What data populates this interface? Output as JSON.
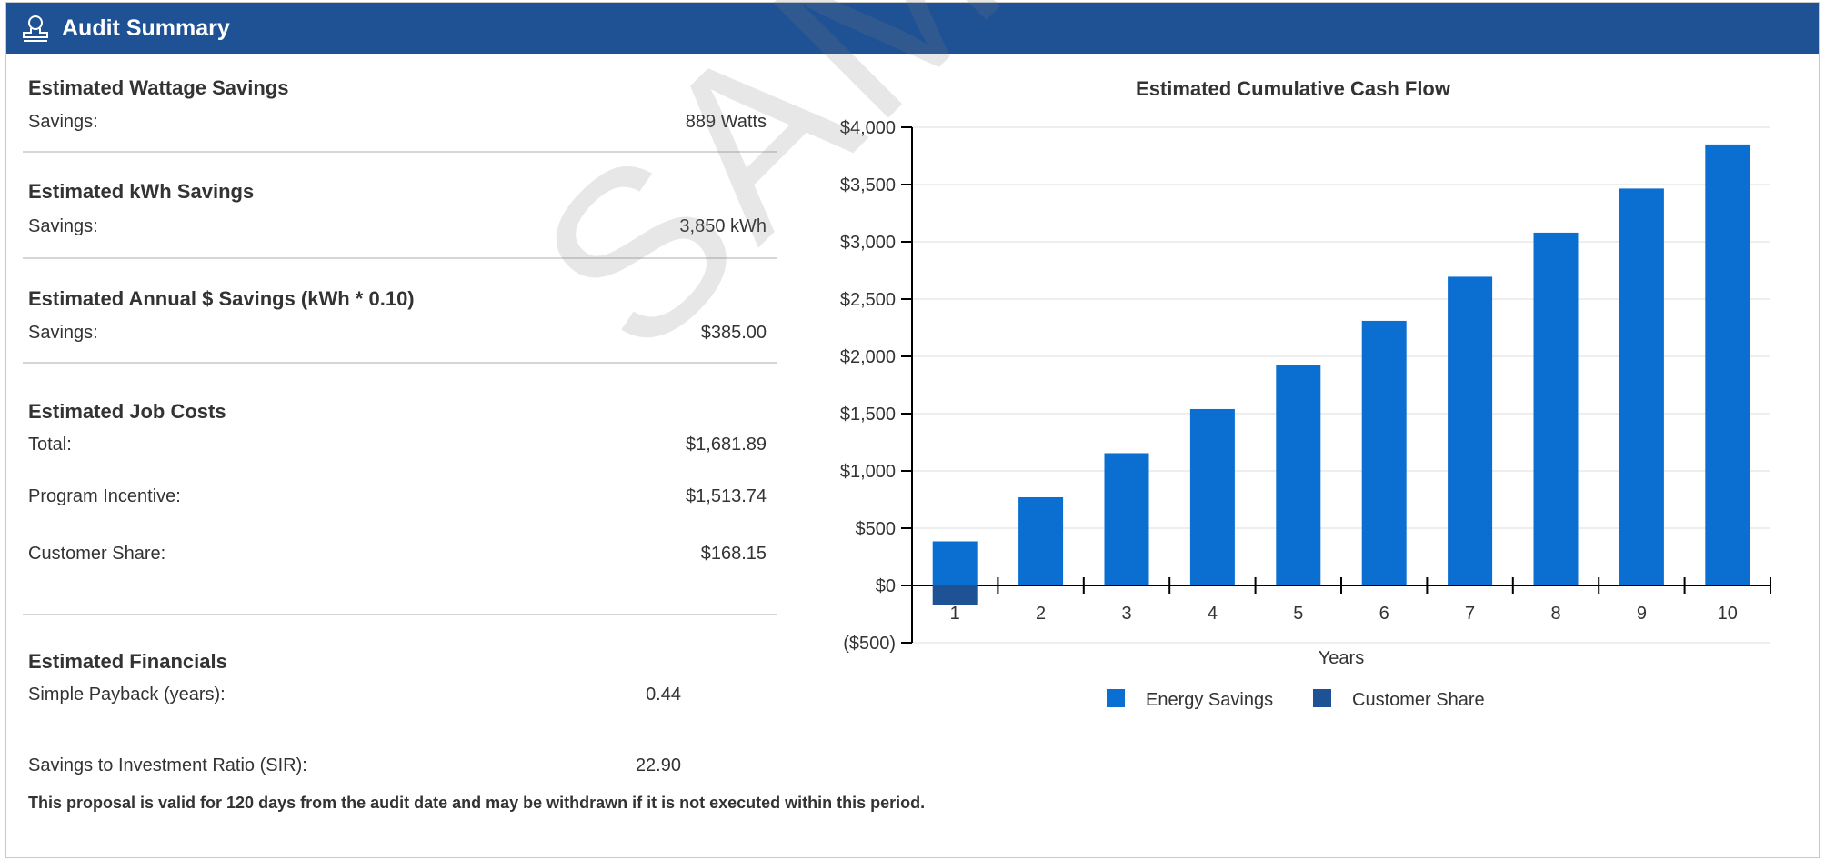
{
  "header": {
    "title": "Audit Summary",
    "icon": "user-stamp-icon"
  },
  "sections": [
    {
      "title": "Estimated Wattage Savings",
      "rows": [
        {
          "label": "Savings:",
          "value": "889 Watts"
        }
      ]
    },
    {
      "title": "Estimated kWh Savings",
      "rows": [
        {
          "label": "Savings:",
          "value": "3,850 kWh"
        }
      ]
    },
    {
      "title": "Estimated Annual $ Savings (kWh * 0.10)",
      "rows": [
        {
          "label": "Savings:",
          "value": "$385.00"
        }
      ]
    },
    {
      "title": "Estimated Job Costs",
      "rows": [
        {
          "label": "Total:",
          "value": "$1,681.89"
        },
        {
          "label": "Program Incentive:",
          "value": "$1,513.74"
        },
        {
          "label": "Customer Share:",
          "value": "$168.15"
        }
      ]
    }
  ],
  "financials": {
    "title": "Estimated Financials",
    "rows": [
      {
        "label": "Simple Payback (years):",
        "value": "0.44"
      },
      {
        "label": "Savings to Investment Ratio (SIR):",
        "value": "22.90"
      }
    ]
  },
  "note": "This proposal is valid for 120 days from the audit date and may be withdrawn if it is not executed within this period.",
  "watermark": "SAMPLE",
  "colors": {
    "header": "#1f5294",
    "energy": "#0a6fd1",
    "customer": "#1f5294"
  },
  "chart_data": {
    "type": "bar",
    "title": "Estimated Cumulative Cash Flow",
    "xlabel": "Years",
    "ylabel": "",
    "categories": [
      "1",
      "2",
      "3",
      "4",
      "5",
      "6",
      "7",
      "8",
      "9",
      "10"
    ],
    "series": [
      {
        "name": "Energy Savings",
        "color": "#0a6fd1",
        "values": [
          385,
          770,
          1155,
          1540,
          1925,
          2310,
          2695,
          3080,
          3465,
          3850
        ]
      },
      {
        "name": "Customer Share",
        "color": "#1f5294",
        "values": [
          -168.15,
          0,
          0,
          0,
          0,
          0,
          0,
          0,
          0,
          0
        ]
      }
    ],
    "y_ticks": [
      "$4,000",
      "$3,500",
      "$3,000",
      "$2,500",
      "$2,000",
      "$1,500",
      "$1,000",
      "$500",
      "$0",
      "($500)"
    ],
    "ylim": [
      -500,
      4000
    ],
    "grid": true,
    "legend": "bottom-center"
  }
}
